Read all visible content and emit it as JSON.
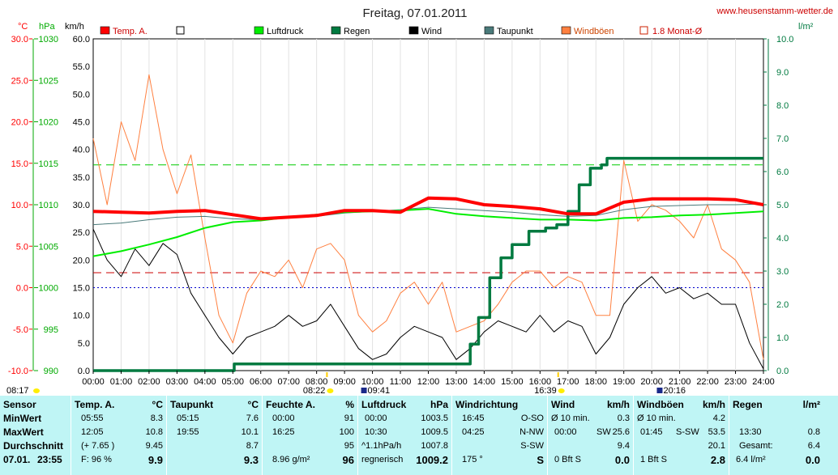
{
  "header": {
    "title": "Freitag, 07.01.2011",
    "site": "www.heusenstamm-wetter.de"
  },
  "units": {
    "temp": "°C",
    "hpa": "hPa",
    "kmh": "km/h",
    "rain": "l/m²"
  },
  "legend": [
    {
      "label": "Temp. A.",
      "color": "#ff0000",
      "style": "fill"
    },
    {
      "label": "",
      "color": "#ffffff",
      "style": "box"
    },
    {
      "label": "Luftdruck",
      "color": "#00ee00",
      "style": "fill"
    },
    {
      "label": "Regen",
      "color": "#007a40",
      "style": "fill"
    },
    {
      "label": "Wind",
      "color": "#000000",
      "style": "fill"
    },
    {
      "label": "Taupunkt",
      "color": "#4a7a7a",
      "style": "fill"
    },
    {
      "label": "Windböen",
      "color": "#ff8040",
      "style": "fill"
    },
    {
      "label": "1.8 Monat-Ø",
      "color": "#cc2200",
      "style": "box"
    }
  ],
  "chart_data": {
    "type": "line",
    "x_ticks": [
      "00:00",
      "01:00",
      "02:00",
      "03:00",
      "04:00",
      "05:00",
      "06:00",
      "07:00",
      "08:00",
      "09:00",
      "10:00",
      "11:00",
      "12:00",
      "13:00",
      "14:00",
      "15:00",
      "16:00",
      "17:00",
      "18:00",
      "19:00",
      "20:00",
      "21:00",
      "22:00",
      "23:00",
      "24:00"
    ],
    "axes": {
      "temp": {
        "unit": "°C",
        "range": [
          -10,
          30
        ],
        "ticks": [
          "30.0",
          "25.0",
          "20.0",
          "15.0",
          "10.0",
          "5.0",
          "0.0",
          "-5.0",
          "-10.0"
        ]
      },
      "pressure": {
        "unit": "hPa",
        "range": [
          990,
          1030
        ],
        "ticks": [
          "1030",
          "1025",
          "1020",
          "1015",
          "1010",
          "1005",
          "1000",
          "995",
          "990"
        ]
      },
      "wind": {
        "unit": "km/h",
        "range": [
          0,
          60
        ],
        "ticks": [
          "60.0",
          "55.0",
          "50.0",
          "45.0",
          "40.0",
          "35.0",
          "30.0",
          "25.0",
          "20.0",
          "15.0",
          "10.0",
          "5.0",
          "0.0"
        ]
      },
      "rain": {
        "unit": "l/m²",
        "range": [
          0,
          10
        ],
        "ticks": [
          "10.0",
          "9.0",
          "8.0",
          "7.0",
          "6.0",
          "5.0",
          "4.0",
          "3.0",
          "2.0",
          "1.0",
          "0.0"
        ]
      }
    },
    "reference_lines": [
      {
        "axis": "temp",
        "value": 14.8,
        "color": "#00cc00",
        "style": "dashed"
      },
      {
        "axis": "temp",
        "value": 1.8,
        "color": "#cc0000",
        "style": "dashed"
      },
      {
        "axis": "temp",
        "value": 0,
        "color": "#0000cc",
        "style": "dotted"
      }
    ],
    "events": [
      {
        "label": "08:17",
        "icon": "sunrise",
        "hour": 0
      },
      {
        "label": "08:22",
        "icon": "sun",
        "hour": 8.37
      },
      {
        "label": "09:41",
        "icon": "moonrise",
        "hour": 9.68
      },
      {
        "label": "16:39",
        "icon": "sun",
        "hour": 16.65
      },
      {
        "label": "20:16",
        "icon": "moonset",
        "hour": 20.27
      }
    ],
    "series": [
      {
        "name": "Temp. A.",
        "axis": "temp",
        "color": "#ff0000",
        "x": [
          0,
          1,
          2,
          3,
          4,
          5,
          6,
          7,
          8,
          9,
          10,
          11,
          12,
          13,
          14,
          15,
          16,
          17,
          18,
          19,
          20,
          21,
          22,
          23,
          24
        ],
        "values": [
          9.2,
          9.1,
          9.0,
          9.2,
          9.3,
          8.8,
          8.3,
          8.5,
          8.7,
          9.3,
          9.3,
          9.1,
          10.8,
          10.7,
          10.0,
          9.8,
          9.5,
          8.9,
          8.9,
          10.3,
          10.7,
          10.7,
          10.7,
          10.6,
          10.0
        ]
      },
      {
        "name": "Luftdruck",
        "axis": "pressure",
        "color": "#00ee00",
        "x": [
          0,
          1,
          2,
          3,
          4,
          5,
          6,
          7,
          8,
          9,
          10,
          11,
          12,
          13,
          14,
          15,
          16,
          17,
          18,
          19,
          20,
          21,
          22,
          23,
          24
        ],
        "values": [
          1003.8,
          1004.4,
          1005.2,
          1006.1,
          1007.2,
          1007.9,
          1008.1,
          1008.5,
          1008.8,
          1009.1,
          1009.2,
          1009.3,
          1009.5,
          1008.9,
          1008.6,
          1008.4,
          1008.2,
          1008.2,
          1008.1,
          1008.4,
          1008.5,
          1008.7,
          1008.8,
          1009.0,
          1009.2
        ]
      },
      {
        "name": "Taupunkt",
        "axis": "temp",
        "color": "#4a7a7a",
        "x": [
          0,
          1,
          2,
          3,
          4,
          5,
          6,
          7,
          8,
          9,
          10,
          11,
          12,
          13,
          14,
          15,
          16,
          17,
          18,
          19,
          20,
          21,
          22,
          23,
          24
        ],
        "values": [
          7.6,
          7.8,
          8.2,
          8.5,
          8.6,
          8.3,
          8.2,
          8.4,
          8.6,
          9.0,
          9.2,
          9.4,
          9.7,
          9.5,
          9.3,
          9.1,
          8.8,
          8.6,
          8.7,
          9.4,
          9.8,
          9.9,
          10.0,
          10.0,
          10.1
        ]
      },
      {
        "name": "Regen",
        "axis": "rain",
        "color": "#007a40",
        "x": [
          0,
          5,
          5.05,
          13.2,
          13.5,
          13.8,
          14.2,
          14.6,
          15.0,
          15.6,
          16.2,
          16.6,
          17.0,
          17.4,
          17.8,
          18.2,
          18.4,
          24
        ],
        "values": [
          0,
          0,
          0.2,
          0.2,
          0.8,
          1.6,
          2.8,
          3.4,
          3.8,
          4.2,
          4.3,
          4.4,
          4.8,
          5.6,
          6.1,
          6.2,
          6.4,
          6.4
        ]
      },
      {
        "name": "Wind",
        "axis": "wind",
        "color": "#000000",
        "x": [
          0,
          0.5,
          1,
          1.5,
          2,
          2.5,
          3,
          3.5,
          4,
          4.5,
          5,
          5.5,
          6,
          6.5,
          7,
          7.5,
          8,
          8.5,
          9,
          9.5,
          10,
          10.5,
          11,
          11.5,
          12,
          12.5,
          13,
          13.5,
          14,
          14.5,
          15,
          15.5,
          16,
          16.5,
          17,
          17.5,
          18,
          18.5,
          19,
          19.5,
          20,
          20.5,
          21,
          21.5,
          22,
          22.5,
          23,
          23.5,
          24
        ],
        "values": [
          25.6,
          20,
          17,
          22,
          19,
          23,
          21,
          14,
          10,
          6,
          3,
          6,
          7,
          8,
          10,
          8,
          9,
          12,
          8,
          4,
          2,
          3,
          6,
          8,
          7,
          6,
          2,
          4,
          7,
          9,
          8,
          7,
          10,
          7,
          9,
          8,
          3,
          6,
          12,
          15,
          17,
          14,
          15,
          13,
          14,
          12,
          12,
          5,
          0.3
        ]
      },
      {
        "name": "Windböen",
        "axis": "wind",
        "color": "#ff8040",
        "x": [
          0,
          0.5,
          1,
          1.5,
          2,
          2.5,
          3,
          3.5,
          4,
          4.5,
          5,
          5.5,
          6,
          6.5,
          7,
          7.5,
          8,
          8.5,
          9,
          9.5,
          10,
          10.5,
          11,
          11.5,
          12,
          12.5,
          13,
          13.5,
          14,
          14.5,
          15,
          15.5,
          16,
          16.5,
          17,
          17.5,
          18,
          18.5,
          19,
          19.5,
          20,
          20.5,
          21,
          21.5,
          22,
          22.5,
          23,
          23.5,
          24
        ],
        "values": [
          42,
          30,
          45,
          38,
          53.5,
          40,
          32,
          39,
          24,
          10,
          5,
          14,
          18,
          17,
          20,
          15,
          22,
          23,
          20,
          10,
          7,
          9,
          14,
          16,
          12,
          16,
          7,
          8,
          9,
          12,
          16,
          18,
          18,
          15,
          17,
          16,
          10,
          10,
          38,
          27,
          30,
          29,
          27,
          24,
          30,
          22,
          20,
          16,
          2
        ]
      }
    ]
  },
  "stats": {
    "sensor": {
      "head": "Sensor",
      "min": "MinWert",
      "max": "MaxWert",
      "avg": "Durchschnitt",
      "date": "07.01.",
      "time": "23:55"
    },
    "temp": {
      "head": "Temp. A.",
      "unit": "°C",
      "min_t": "05:55",
      "min_v": "8.3",
      "max_t": "12:05",
      "max_v": "10.8",
      "avg_t": "(+ 7.65 )",
      "avg_v": "9.45",
      "cur_t": "F: 96 %",
      "cur_v": "9.9"
    },
    "dew": {
      "head": "Taupunkt",
      "unit": "°C",
      "min_t": "05:15",
      "min_v": "7.6",
      "max_t": "19:55",
      "max_v": "10.1",
      "avg_v": "8.7",
      "cur_v": "9.3"
    },
    "hum": {
      "head": "Feuchte A.",
      "unit": "%",
      "min_t": "00:00",
      "min_v": "91",
      "max_t": "16:25",
      "max_v": "100",
      "avg_v": "95",
      "cur_t": "8.96 g/m²",
      "cur_v": "96"
    },
    "press": {
      "head": "Luftdruck",
      "unit": "hPa",
      "min_t": "00:00",
      "min_v": "1003.5",
      "max_t": "10:30",
      "max_v": "1009.5",
      "avg_t": "^1.1hPa/h",
      "avg_v": "1007.8",
      "cur_t": "regnerisch",
      "cur_v": "1009.2"
    },
    "dir": {
      "head": "Windrichtung",
      "min_t": "16:45",
      "min_v": "O-SO",
      "max_t": "04:25",
      "max_v": "N-NW",
      "avg_v": "S-SW",
      "cur_t": "175 °",
      "cur_v": "S"
    },
    "wind": {
      "head": "Wind",
      "unit": "km/h",
      "min_t": "Ø 10 min.",
      "min_v": "0.3",
      "max_t": "00:00",
      "max_m": "SW",
      "max_v": "25.6",
      "avg_v": "9.4",
      "cur_t": "0 Bft S",
      "cur_v": "0.0"
    },
    "gust": {
      "head": "Windböen",
      "unit": "km/h",
      "min_t": "Ø 10 min.",
      "min_v": "4.2",
      "max_t": "01:45",
      "max_m": "S-SW",
      "max_v": "53.5",
      "avg_v": "20.1",
      "cur_t": "1 Bft S",
      "cur_v": "2.8"
    },
    "rain": {
      "head": "Regen",
      "unit": "l/m²",
      "max_t": "13:30",
      "max_v": "0.8",
      "avg_t": "Gesamt:",
      "avg_v": "6.4",
      "cur_t": "6.4 l/m²",
      "cur_v": "0.0"
    }
  }
}
